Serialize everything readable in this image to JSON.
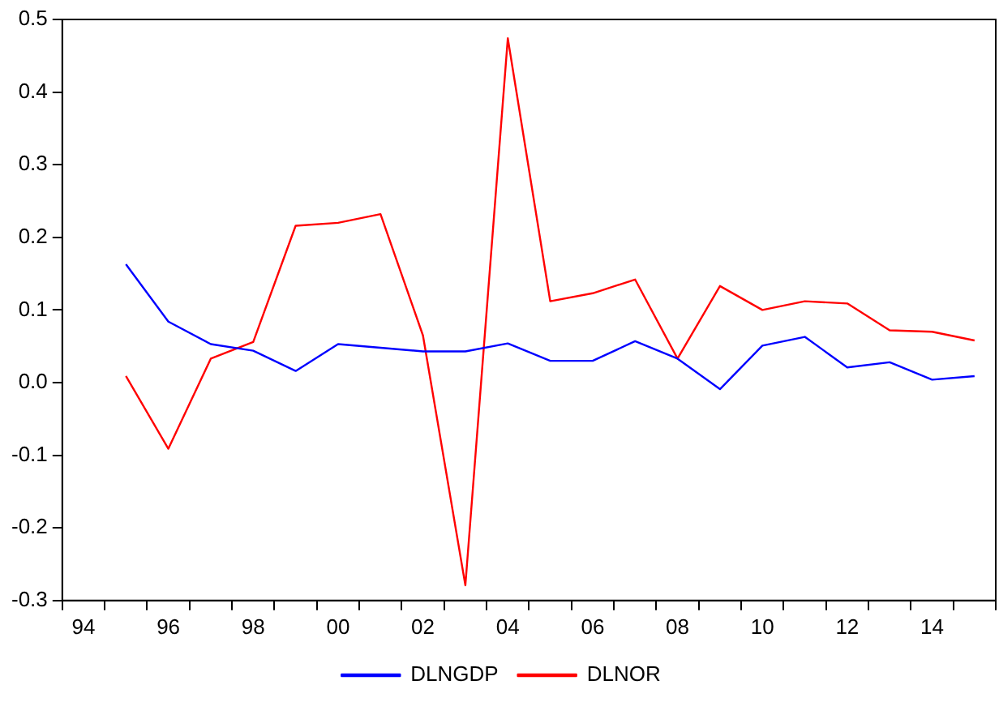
{
  "chart_data": {
    "type": "line",
    "categories": [
      "94",
      null,
      "96",
      null,
      "98",
      null,
      "00",
      null,
      "02",
      null,
      "04",
      null,
      "06",
      null,
      "08",
      null,
      "10",
      null,
      "12",
      null,
      "14",
      null
    ],
    "series": [
      {
        "name": "DLNGDP",
        "color": "#0000ff",
        "values": [
          null,
          0.163,
          0.084,
          0.053,
          0.044,
          0.016,
          0.053,
          0.048,
          0.043,
          0.043,
          0.054,
          0.03,
          0.03,
          0.057,
          0.033,
          -0.009,
          0.051,
          0.063,
          0.021,
          0.028,
          0.004,
          0.009
        ]
      },
      {
        "name": "DLNOR",
        "color": "#ff0000",
        "values": [
          null,
          0.009,
          -0.091,
          0.033,
          0.056,
          0.216,
          0.22,
          0.232,
          0.065,
          -0.279,
          0.474,
          0.112,
          0.123,
          0.142,
          0.033,
          0.133,
          0.1,
          0.112,
          0.109,
          0.072,
          0.07,
          0.058
        ]
      }
    ],
    "ylim": [
      -0.3,
      0.5
    ],
    "yticks": [
      0.5,
      0.4,
      0.3,
      0.2,
      0.1,
      {
        "value": 0,
        "label": "0.0"
      },
      -0.1,
      -0.2,
      -0.3
    ],
    "grid": false,
    "legend": "bottom",
    "marker": "none",
    "line_style": "solid"
  }
}
